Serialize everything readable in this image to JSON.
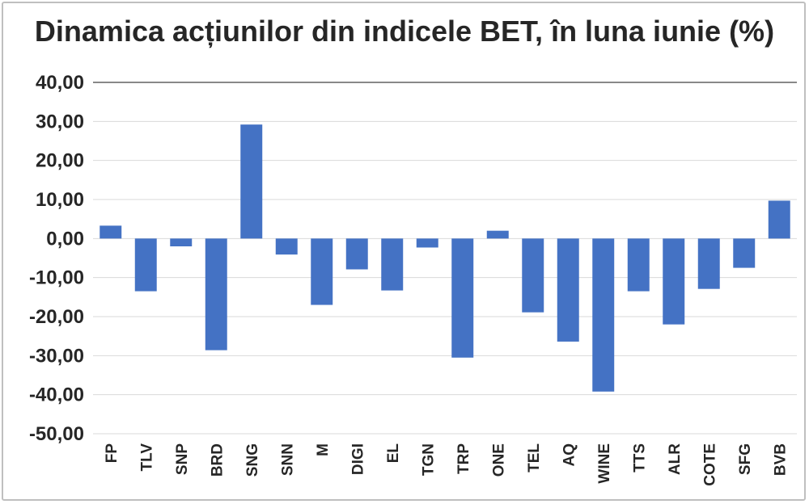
{
  "chart_data": {
    "type": "bar",
    "title": "Dinamica acțiunilor din indicele BET, în luna iunie  (%)",
    "xlabel": "",
    "ylabel": "",
    "ylim": [
      -50,
      40
    ],
    "ytick_labels": [
      "40,00",
      "30,00",
      "20,00",
      "10,00",
      "0,00",
      "-10,00",
      "-20,00",
      "-30,00",
      "-40,00",
      "-50,00"
    ],
    "ytick_values": [
      40,
      30,
      20,
      10,
      0,
      -10,
      -20,
      -30,
      -40,
      -50
    ],
    "grid": true,
    "legend": "none",
    "bar_color": "#4472c4",
    "categories": [
      "FP",
      "TLV",
      "SNP",
      "BRD",
      "SNG",
      "SNN",
      "M",
      "DIGI",
      "EL",
      "TGN",
      "TRP",
      "ONE",
      "TEL",
      "AQ",
      "WINE",
      "TTS",
      "ALR",
      "COTE",
      "SFG",
      "BVB"
    ],
    "values": [
      3.3,
      -13.5,
      -2.0,
      -28.6,
      29.2,
      -4.1,
      -17.0,
      -7.9,
      -13.3,
      -2.3,
      -30.5,
      2.0,
      -18.9,
      -26.4,
      -39.2,
      -13.5,
      -22.0,
      -12.9,
      -7.5,
      9.7
    ]
  }
}
